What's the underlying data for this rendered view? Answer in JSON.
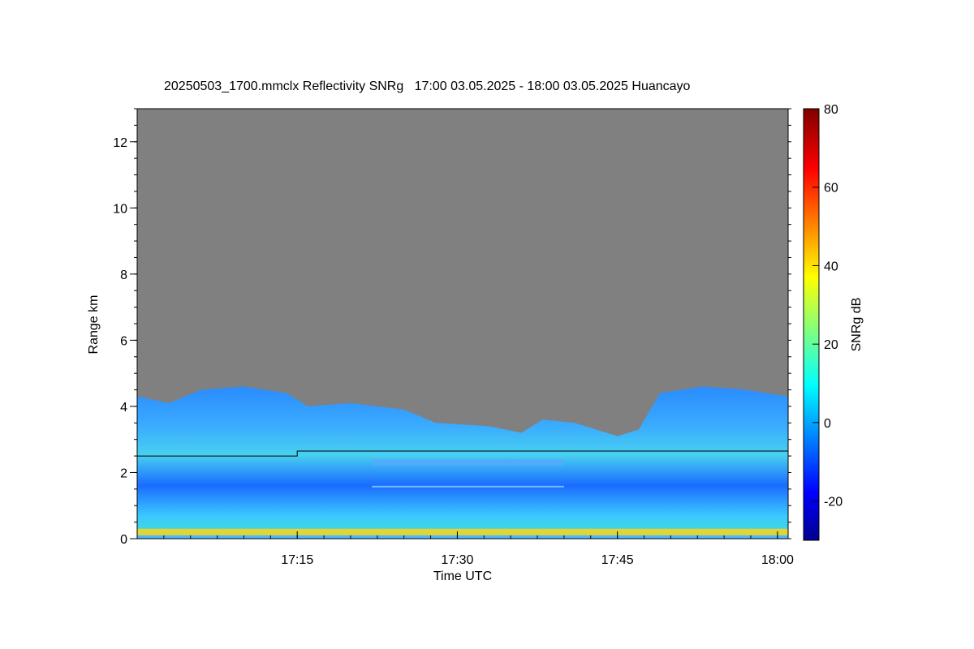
{
  "chart_data": {
    "type": "heatmap",
    "title": "20250503_1700.mmclx Reflectivity SNRg   17:00 03.05.2025 - 18:00 03.05.2025 Huancayo",
    "xlabel": "Time UTC",
    "ylabel": "Range km",
    "x_ticks": [
      "17:15",
      "17:30",
      "17:45",
      "18:00"
    ],
    "x_tick_minutes": [
      15,
      30,
      45,
      60
    ],
    "xlim_minutes": [
      0,
      61
    ],
    "y_ticks": [
      0,
      2,
      4,
      6,
      8,
      10,
      12
    ],
    "ylim": [
      0,
      13
    ],
    "missing_color": "#808080",
    "colorbar": {
      "label": "SNRg dB",
      "ticks": [
        -20,
        0,
        20,
        40,
        60,
        80
      ],
      "range": [
        -30,
        80
      ],
      "colormap": "jet"
    },
    "cloud_layer": {
      "description_top_km": [
        [
          0,
          4.3
        ],
        [
          3,
          4.1
        ],
        [
          6,
          4.5
        ],
        [
          10,
          4.6
        ],
        [
          14,
          4.4
        ],
        [
          16,
          4.0
        ],
        [
          20,
          4.1
        ],
        [
          25,
          3.9
        ],
        [
          28,
          3.5
        ],
        [
          33,
          3.4
        ],
        [
          36,
          3.2
        ],
        [
          38,
          3.6
        ],
        [
          41,
          3.5
        ],
        [
          45,
          3.1
        ],
        [
          47,
          3.3
        ],
        [
          49,
          4.4
        ],
        [
          53,
          4.6
        ],
        [
          57,
          4.5
        ],
        [
          61,
          4.3
        ]
      ],
      "boundary_line_km": [
        [
          0,
          2.5
        ],
        [
          15,
          2.5
        ],
        [
          15,
          2.65
        ],
        [
          61,
          2.65
        ]
      ],
      "gap_bands_km": [
        [
          2.2,
          2.4
        ],
        [
          1.55,
          1.6
        ]
      ],
      "surface_band_km": [
        0.1,
        0.3
      ]
    }
  }
}
